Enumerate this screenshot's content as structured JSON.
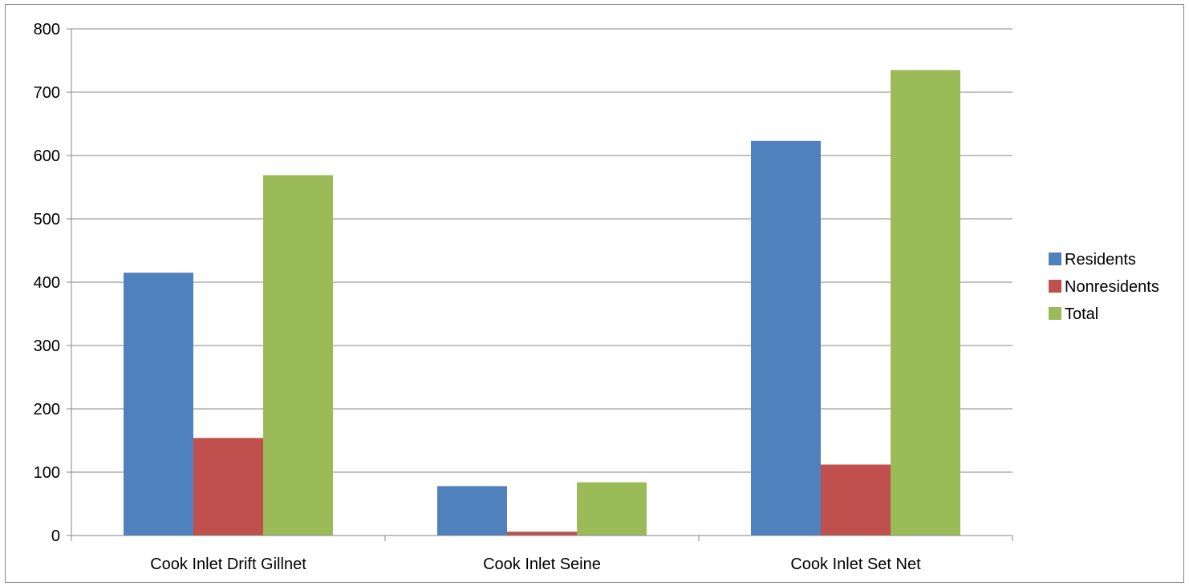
{
  "chart_data": {
    "type": "bar",
    "categories": [
      "Cook Inlet Drift Gillnet",
      "Cook Inlet Seine",
      "Cook Inlet Set Net"
    ],
    "series": [
      {
        "name": "Residents",
        "color": "#4F81BD",
        "values": [
          415,
          78,
          623
        ]
      },
      {
        "name": "Nonresidents",
        "color": "#C0504D",
        "values": [
          154,
          6,
          112
        ]
      },
      {
        "name": "Total",
        "color": "#9BBB59",
        "values": [
          569,
          84,
          735
        ]
      }
    ],
    "ylim": [
      0,
      800
    ],
    "yticks": [
      0,
      100,
      200,
      300,
      400,
      500,
      600,
      700,
      800
    ],
    "grid": true,
    "legend_position": "right"
  }
}
